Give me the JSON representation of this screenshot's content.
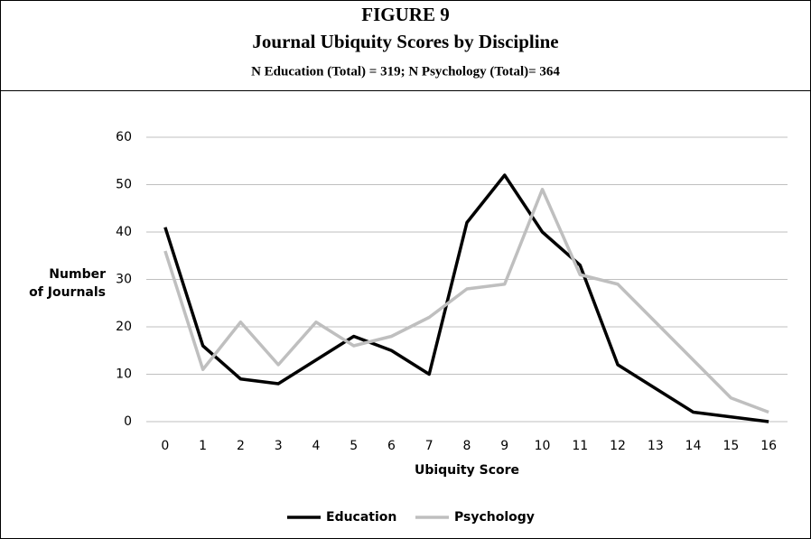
{
  "chart_data": {
    "type": "line",
    "title": "FIGURE 9",
    "subtitle": "Journal Ubiquity Scores by Discipline",
    "note": "N Education (Total) = 319; N Psychology (Total)= 364",
    "xlabel": "Ubiquity Score",
    "ylabel": [
      "Number",
      "of Journals"
    ],
    "categories": [
      "0",
      "1",
      "2",
      "3",
      "4",
      "5",
      "6",
      "7",
      "8",
      "9",
      "10",
      "11",
      "12",
      "13",
      "14",
      "15",
      "16"
    ],
    "series": [
      {
        "name": "Education",
        "color": "#000000",
        "values": [
          41,
          16,
          9,
          8,
          13,
          18,
          15,
          10,
          42,
          52,
          40,
          33,
          12,
          7,
          2,
          1,
          0
        ]
      },
      {
        "name": "Psychology",
        "color": "#bfbfbf",
        "values": [
          36,
          11,
          21,
          12,
          21,
          16,
          18,
          22,
          28,
          29,
          49,
          31,
          29,
          21,
          13,
          5,
          2
        ]
      }
    ],
    "ylim": [
      0,
      60
    ],
    "yticks": [
      0,
      10,
      20,
      30,
      40,
      50,
      60
    ],
    "grid": true,
    "legend": "bottom"
  }
}
